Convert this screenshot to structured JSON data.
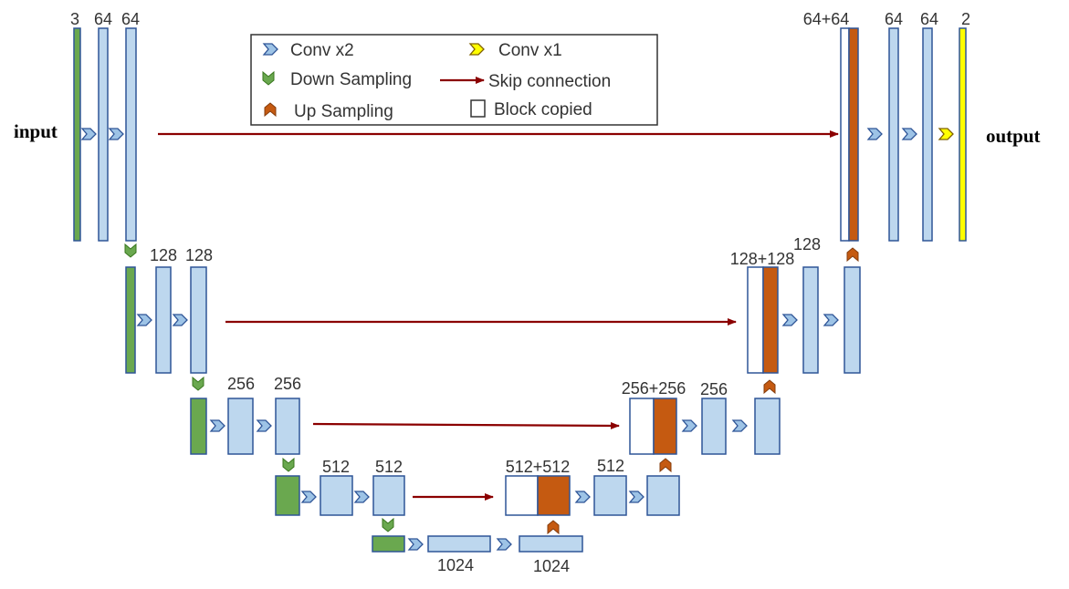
{
  "colors": {
    "input_block": "#6aa84f",
    "feature_block": "#bdd7ee",
    "copied_block": "#ffffff",
    "upsampled_block": "#c55a11",
    "output_block": "#ffff00",
    "skip_arrow": "#8b0000",
    "conv2_icon": "#9dc3e6",
    "conv1_icon": "#ffff00",
    "down_icon": "#6aa84f",
    "up_icon": "#c55a11"
  },
  "labels": {
    "input": "input",
    "output": "output",
    "enc1_a": "3",
    "enc1_b": "64",
    "enc1_c": "64",
    "enc2_a": "128",
    "enc2_b": "128",
    "enc3_a": "256",
    "enc3_b": "256",
    "enc4_a": "512",
    "enc4_b": "512",
    "bott_a": "1024",
    "bott_b": "1024",
    "dec4_cat": "512+512",
    "dec4_b": "512",
    "dec3_cat": "256+256",
    "dec3_b": "256",
    "dec2_cat": "128+128",
    "dec2_b": "128",
    "dec1_cat": "64+64",
    "dec1_b": "64",
    "dec1_c": "64",
    "dec1_out": "2"
  },
  "legend": {
    "conv2": "Conv x2",
    "conv1": "Conv x1",
    "down": "Down Sampling",
    "skip": "Skip connection",
    "up": "Up Sampling",
    "copied": "Block copied"
  }
}
